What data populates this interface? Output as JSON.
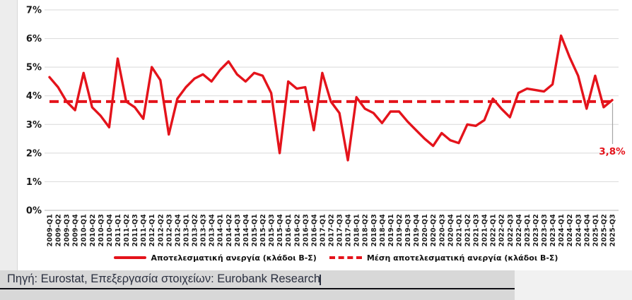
{
  "colors": {
    "line_red": "#e4131b",
    "grid": "#d9d9d9",
    "axis": "#b3b3b3",
    "leader": "#a6a6a6",
    "footer_bar": "#d8d8d8",
    "footer_bar_right": "#f1f1f1",
    "footer_text": "#2b3040"
  },
  "footer": {
    "source_note": "Πηγή: Eurostat, Επεξεργασία στοιχείων: Eurobank Research"
  },
  "chart_data": {
    "type": "line",
    "title": "",
    "xlabel": "",
    "ylabel": "",
    "ylim": [
      0,
      7
    ],
    "grid": true,
    "legend_position": "bottom",
    "yticks": [
      "0%",
      "1%",
      "2%",
      "3%",
      "4%",
      "5%",
      "6%",
      "7%"
    ],
    "categories": [
      "2009-Q1",
      "2009-Q2",
      "2009-Q3",
      "2009-Q4",
      "2010-Q1",
      "2010-Q2",
      "2010-Q3",
      "2010-Q4",
      "2011-Q1",
      "2011-Q2",
      "2011-Q3",
      "2011-Q4",
      "2012-Q1",
      "2012-Q2",
      "2012-Q3",
      "2012-Q4",
      "2013-Q1",
      "2013-Q2",
      "2013-Q3",
      "2013-Q4",
      "2014-Q1",
      "2014-Q2",
      "2014-Q3",
      "2014-Q4",
      "2015-Q1",
      "2015-Q2",
      "2015-Q3",
      "2015-Q4",
      "2016-Q1",
      "2016-Q2",
      "2016-Q3",
      "2016-Q4",
      "2017-Q1",
      "2017-Q2",
      "2017-Q3",
      "2017-Q4",
      "2018-Q1",
      "2018-Q2",
      "2018-Q3",
      "2018-Q4",
      "2019-Q1",
      "2019-Q2",
      "2019-Q3",
      "2019-Q4",
      "2020-Q1",
      "2020-Q2",
      "2020-Q3",
      "2020-Q4",
      "2021-Q1",
      "2021-Q2",
      "2021-Q3",
      "2021-Q4",
      "2022-Q1",
      "2022-Q2",
      "2022-Q3",
      "2022-Q4",
      "2023-Q1",
      "2023-Q2",
      "2023-Q3",
      "2023-Q4",
      "2024-Q1",
      "2024-Q2",
      "2024-Q3",
      "2024-Q4",
      "2025-Q1",
      "2025-Q2",
      "2025-Q3"
    ],
    "series": [
      {
        "name": "Αποτελεσματική ανεργία (κλάδοι Β-Σ)",
        "style": "solid",
        "color": "#e4131b",
        "values": [
          4.65,
          4.3,
          3.8,
          3.5,
          4.8,
          3.6,
          3.3,
          2.9,
          5.3,
          3.8,
          3.6,
          3.2,
          5.0,
          4.55,
          2.65,
          3.9,
          4.3,
          4.6,
          4.75,
          4.5,
          4.9,
          5.2,
          4.75,
          4.5,
          4.8,
          4.7,
          4.1,
          2.0,
          4.5,
          4.25,
          4.3,
          2.8,
          4.8,
          3.8,
          3.4,
          1.75,
          3.95,
          3.55,
          3.4,
          3.05,
          3.45,
          3.45,
          3.1,
          2.8,
          2.5,
          2.25,
          2.7,
          2.45,
          2.35,
          3.0,
          2.95,
          3.15,
          3.9,
          3.55,
          3.25,
          4.1,
          4.25,
          4.2,
          4.15,
          4.4,
          6.1,
          5.35,
          4.7,
          3.55,
          4.7,
          3.6,
          3.85
        ]
      },
      {
        "name": "Μέση αποτελεσματική ανεργία (κλάδοι Β-Σ)",
        "style": "dashed",
        "color": "#e4131b",
        "value": 3.8
      }
    ],
    "annotation": {
      "text": "3,8%",
      "color": "#e4131b"
    }
  }
}
